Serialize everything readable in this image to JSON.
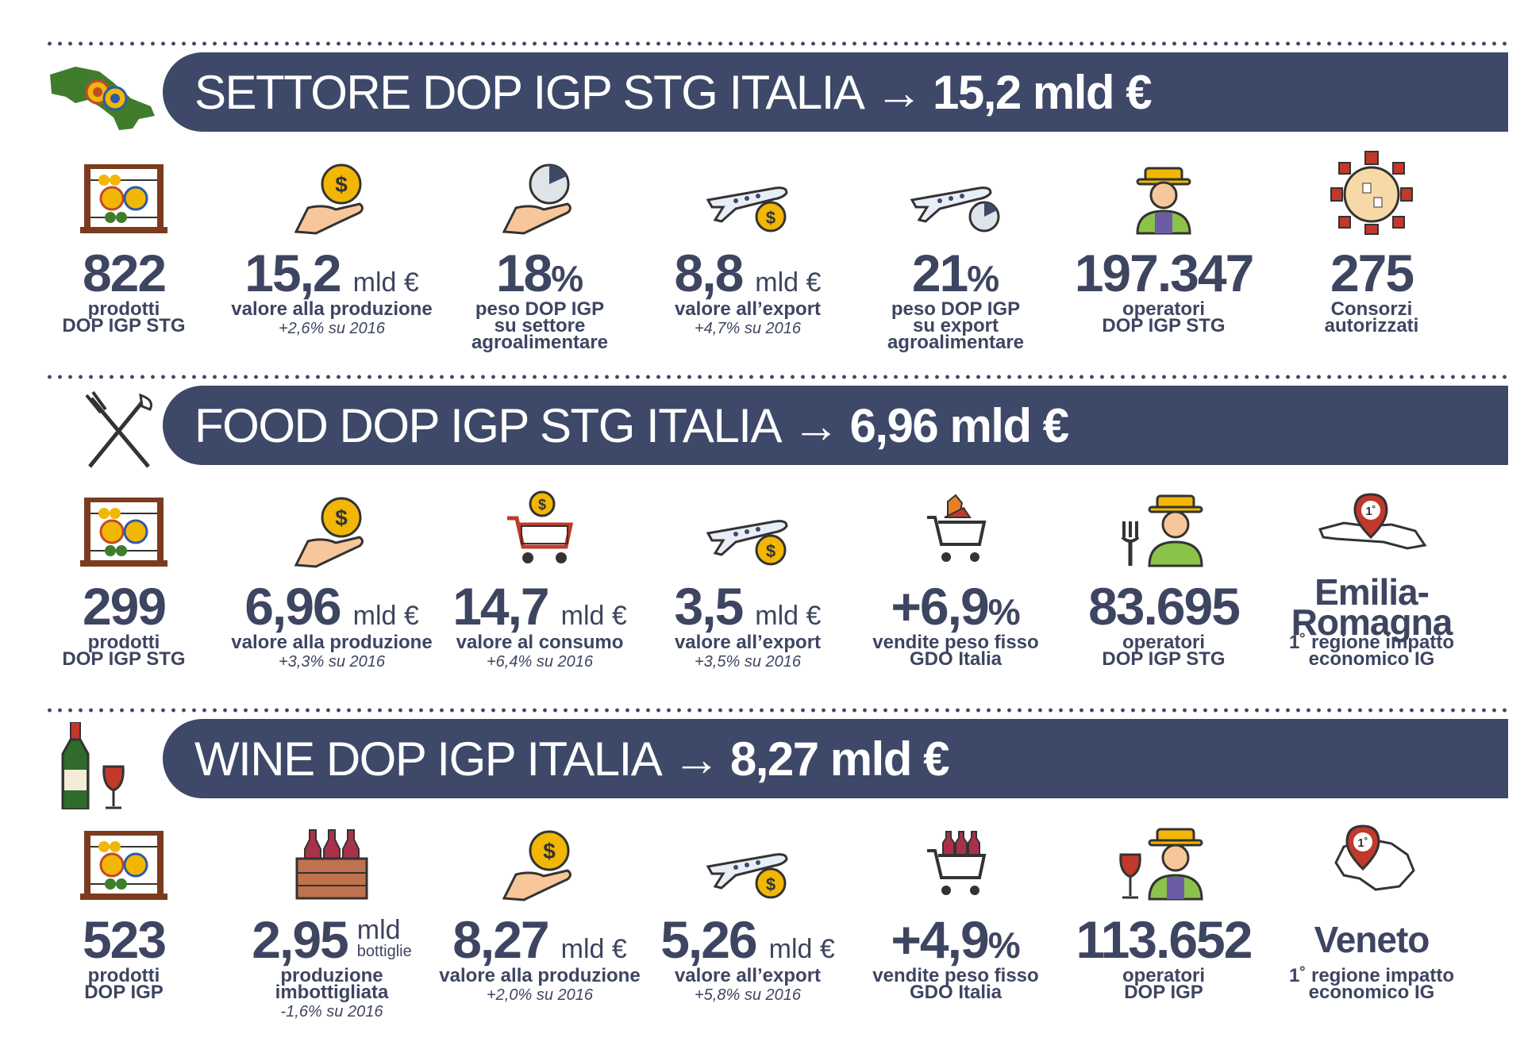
{
  "colors": {
    "navy": "#3e4868",
    "text": "#3e4561",
    "gold": "#f2b705",
    "skin": "#f7c79b"
  },
  "sections": [
    {
      "banner": {
        "title": "SETTORE DOP IGP STG ITALIA",
        "arrow": "→",
        "total": "15,2 mld €"
      },
      "icon": "italy-map-icon",
      "stats": [
        {
          "icon": "abacus-icon",
          "num": "822",
          "unit": "",
          "label": "prodotti",
          "label2": "DOP IGP STG",
          "label3": "",
          "sub": ""
        },
        {
          "icon": "hand-coin-icon",
          "num": "15,2",
          "unit": "mld €",
          "label": "valore alla produzione",
          "label2": "",
          "label3": "",
          "sub": "+2,6% su 2016"
        },
        {
          "icon": "hand-pie-icon",
          "num": "18",
          "unit": "%",
          "label": "peso DOP IGP",
          "label2": "su settore",
          "label3": "agroalimentare",
          "sub": ""
        },
        {
          "icon": "plane-coin-icon",
          "num": "8,8",
          "unit": "mld €",
          "label": "valore all’export",
          "label2": "",
          "label3": "",
          "sub": "+4,7% su 2016"
        },
        {
          "icon": "plane-pie-icon",
          "num": "21",
          "unit": "%",
          "label": "peso DOP IGP",
          "label2": "su export",
          "label3": "agroalimentare",
          "sub": ""
        },
        {
          "icon": "farmer-icon",
          "num": "197.347",
          "unit": "",
          "label": "operatori",
          "label2": "DOP IGP STG",
          "label3": "",
          "sub": ""
        },
        {
          "icon": "meeting-table-icon",
          "num": "275",
          "unit": "",
          "label": "Consorzi",
          "label2": "autorizzati",
          "label3": "",
          "sub": ""
        }
      ]
    },
    {
      "banner": {
        "title": "FOOD DOP IGP STG ITALIA",
        "arrow": "→",
        "total": "6,96 mld €"
      },
      "icon": "fork-knife-icon",
      "stats": [
        {
          "icon": "abacus-icon",
          "num": "299",
          "unit": "",
          "label": "prodotti",
          "label2": "DOP IGP STG",
          "label3": "",
          "sub": ""
        },
        {
          "icon": "hand-coin-icon",
          "num": "6,96",
          "unit": "mld €",
          "label": "valore alla produzione",
          "label2": "",
          "label3": "",
          "sub": "+3,3% su 2016"
        },
        {
          "icon": "cart-coin-icon",
          "num": "14,7",
          "unit": "mld €",
          "label": "valore al consumo",
          "label2": "",
          "label3": "",
          "sub": "+6,4% su 2016"
        },
        {
          "icon": "plane-coin-icon",
          "num": "3,5",
          "unit": "mld €",
          "label": "valore all’export",
          "label2": "",
          "label3": "",
          "sub": "+3,5% su 2016"
        },
        {
          "icon": "cart-food-icon",
          "num": "+6,9",
          "unit": "%",
          "label": "vendite peso fisso",
          "label2": "GDO Italia",
          "label3": "",
          "sub": ""
        },
        {
          "icon": "farmer-fork-icon",
          "num": "83.695",
          "unit": "",
          "label": "operatori",
          "label2": "DOP IGP STG",
          "label3": "",
          "sub": ""
        },
        {
          "icon": "region-pin-icon",
          "region1": "Emilia-",
          "region2": "Romagna",
          "label": "1˚ regione impatto",
          "label2": "economico IG",
          "label3": "",
          "sub": ""
        }
      ]
    },
    {
      "banner": {
        "title": "WINE DOP IGP ITALIA",
        "arrow": "→",
        "total": "8,27 mld €"
      },
      "icon": "wine-bottle-glass-icon",
      "stats": [
        {
          "icon": "abacus-icon",
          "num": "523",
          "unit": "",
          "label": "prodotti",
          "label2": "DOP IGP",
          "label3": "",
          "sub": ""
        },
        {
          "icon": "wine-crate-icon",
          "num": "2,95",
          "unit1": "mld",
          "unit2": "bottiglie",
          "label": "produzione",
          "label2": "imbottigliata",
          "label3": "",
          "sub": "-1,6% su 2016"
        },
        {
          "icon": "hand-coin-icon",
          "num": "8,27",
          "unit": "mld €",
          "label": "valore alla produzione",
          "label2": "",
          "label3": "",
          "sub": "+2,0% su 2016"
        },
        {
          "icon": "plane-coin-icon",
          "num": "5,26",
          "unit": "mld €",
          "label": "valore all’export",
          "label2": "",
          "label3": "",
          "sub": "+5,8% su 2016"
        },
        {
          "icon": "cart-wine-icon",
          "num": "+4,9",
          "unit": "%",
          "label": "vendite peso fisso",
          "label2": "GDO Italia",
          "label3": "",
          "sub": ""
        },
        {
          "icon": "farmer-wine-icon",
          "num": "113.652",
          "unit": "",
          "label": "operatori",
          "label2": "DOP IGP",
          "label3": "",
          "sub": ""
        },
        {
          "icon": "region-pin-icon",
          "region1": "Veneto",
          "region2": "",
          "label": "1˚ regione impatto",
          "label2": "economico IG",
          "label3": "",
          "sub": ""
        }
      ]
    }
  ]
}
